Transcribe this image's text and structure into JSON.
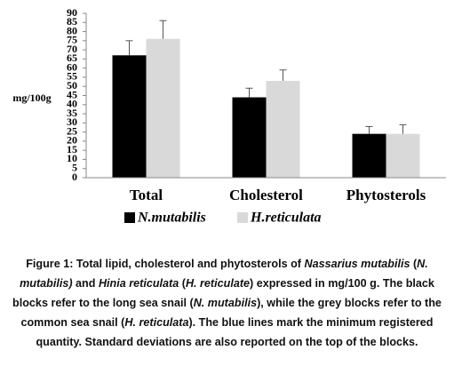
{
  "chart_data": {
    "type": "bar",
    "y_label": "mg/100g",
    "categories": [
      "Total",
      "Cholesterol",
      "Phytosterols"
    ],
    "series": [
      {
        "name": "N.mutabilis",
        "color": "#000000",
        "values": [
          67,
          44,
          24
        ],
        "errors": [
          8,
          5,
          4
        ]
      },
      {
        "name": "H.reticulata",
        "color": "#d9d9d9",
        "values": [
          76,
          53,
          24
        ],
        "errors": [
          10,
          6,
          5
        ]
      }
    ],
    "ylim": [
      0,
      90
    ],
    "yticks": [
      0,
      5,
      10,
      15,
      20,
      25,
      30,
      35,
      40,
      45,
      50,
      55,
      60,
      65,
      70,
      75,
      80,
      85,
      90
    ],
    "grid": false,
    "legend": "bottom"
  },
  "caption": [
    {
      "text": "Figure 1: Total lipid, cholesterol and phytosterols of ",
      "italic": false
    },
    {
      "text": "Nassarius mutabilis",
      "italic": true
    },
    {
      "text": " (",
      "italic": false
    },
    {
      "text": "N. mutabilis)",
      "italic": true
    },
    {
      "text": " and ",
      "italic": false
    },
    {
      "text": "Hinia reticulata",
      "italic": true
    },
    {
      "text": " (",
      "italic": false
    },
    {
      "text": "H. reticulate",
      "italic": true
    },
    {
      "text": ") expressed in mg/100 g. The black blocks refer to the long sea snail (",
      "italic": false
    },
    {
      "text": "N. mutabilis",
      "italic": true
    },
    {
      "text": "), while the grey blocks refer to the common sea snail (",
      "italic": false
    },
    {
      "text": "H. reticulata",
      "italic": true
    },
    {
      "text": "). The blue lines mark the minimum registered quantity. Standard deviations are also reported on the top of the blocks.",
      "italic": false
    }
  ]
}
